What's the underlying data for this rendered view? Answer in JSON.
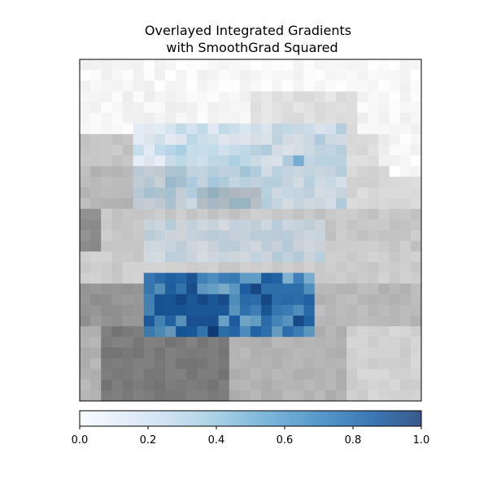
{
  "chart_data": {
    "type": "heatmap",
    "title_lines": [
      "Overlayed Integrated Gradients",
      "with SmoothGrad Squared"
    ],
    "image_grid": {
      "rows": 32,
      "cols": 32
    },
    "colormap": "Blues",
    "colorbar": {
      "orientation": "horizontal",
      "placement": "bottom",
      "range": [
        0.0,
        1.0
      ],
      "ticks": [
        0.0,
        0.2,
        0.4,
        0.6,
        0.8,
        1.0
      ],
      "tick_labels": [
        "0.0",
        "0.2",
        "0.4",
        "0.6",
        "0.8",
        "1.0"
      ]
    },
    "axes_ticks_visible": false,
    "colors": {
      "low": "#f7fbff",
      "mid": "#6baed6",
      "high": "#08306b",
      "frame": "#000000"
    }
  }
}
